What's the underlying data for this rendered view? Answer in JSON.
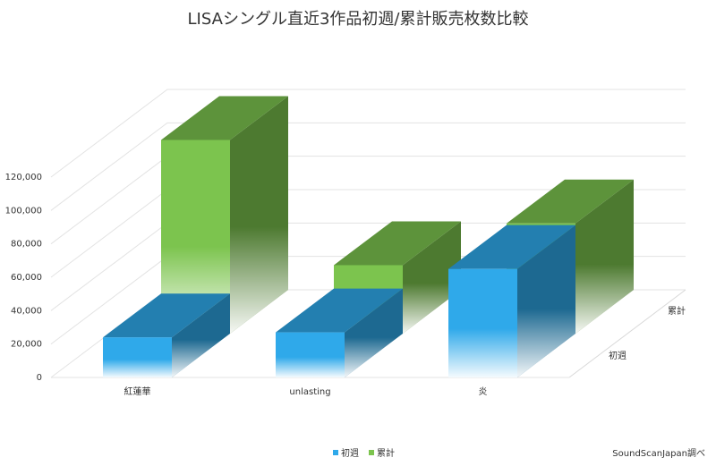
{
  "chart_data": {
    "type": "bar3d",
    "title": "LISAシングル直近3作品初週/累計販売枚数比較",
    "categories": [
      "紅蓮華",
      "unlasting",
      "炎"
    ],
    "series": [
      {
        "name": "初週",
        "color": "#2fa9ea",
        "values": [
          24000,
          27000,
          65000
        ]
      },
      {
        "name": "累計",
        "color": "#7cc44e",
        "values": [
          116000,
          41000,
          66000
        ]
      }
    ],
    "ylim": [
      0,
      120000
    ],
    "yticks": [
      0,
      {
        "value": 20000,
        "label": "20,000"
      },
      {
        "value": 40000,
        "label": "40,000"
      },
      {
        "value": 60000,
        "label": "60,000"
      },
      {
        "value": 80000,
        "label": "80,000"
      },
      {
        "value": 100000,
        "label": "100,000"
      },
      {
        "value": 120000,
        "label": "120,000"
      }
    ],
    "grid": true,
    "source": "SoundScanJapan調べ"
  }
}
